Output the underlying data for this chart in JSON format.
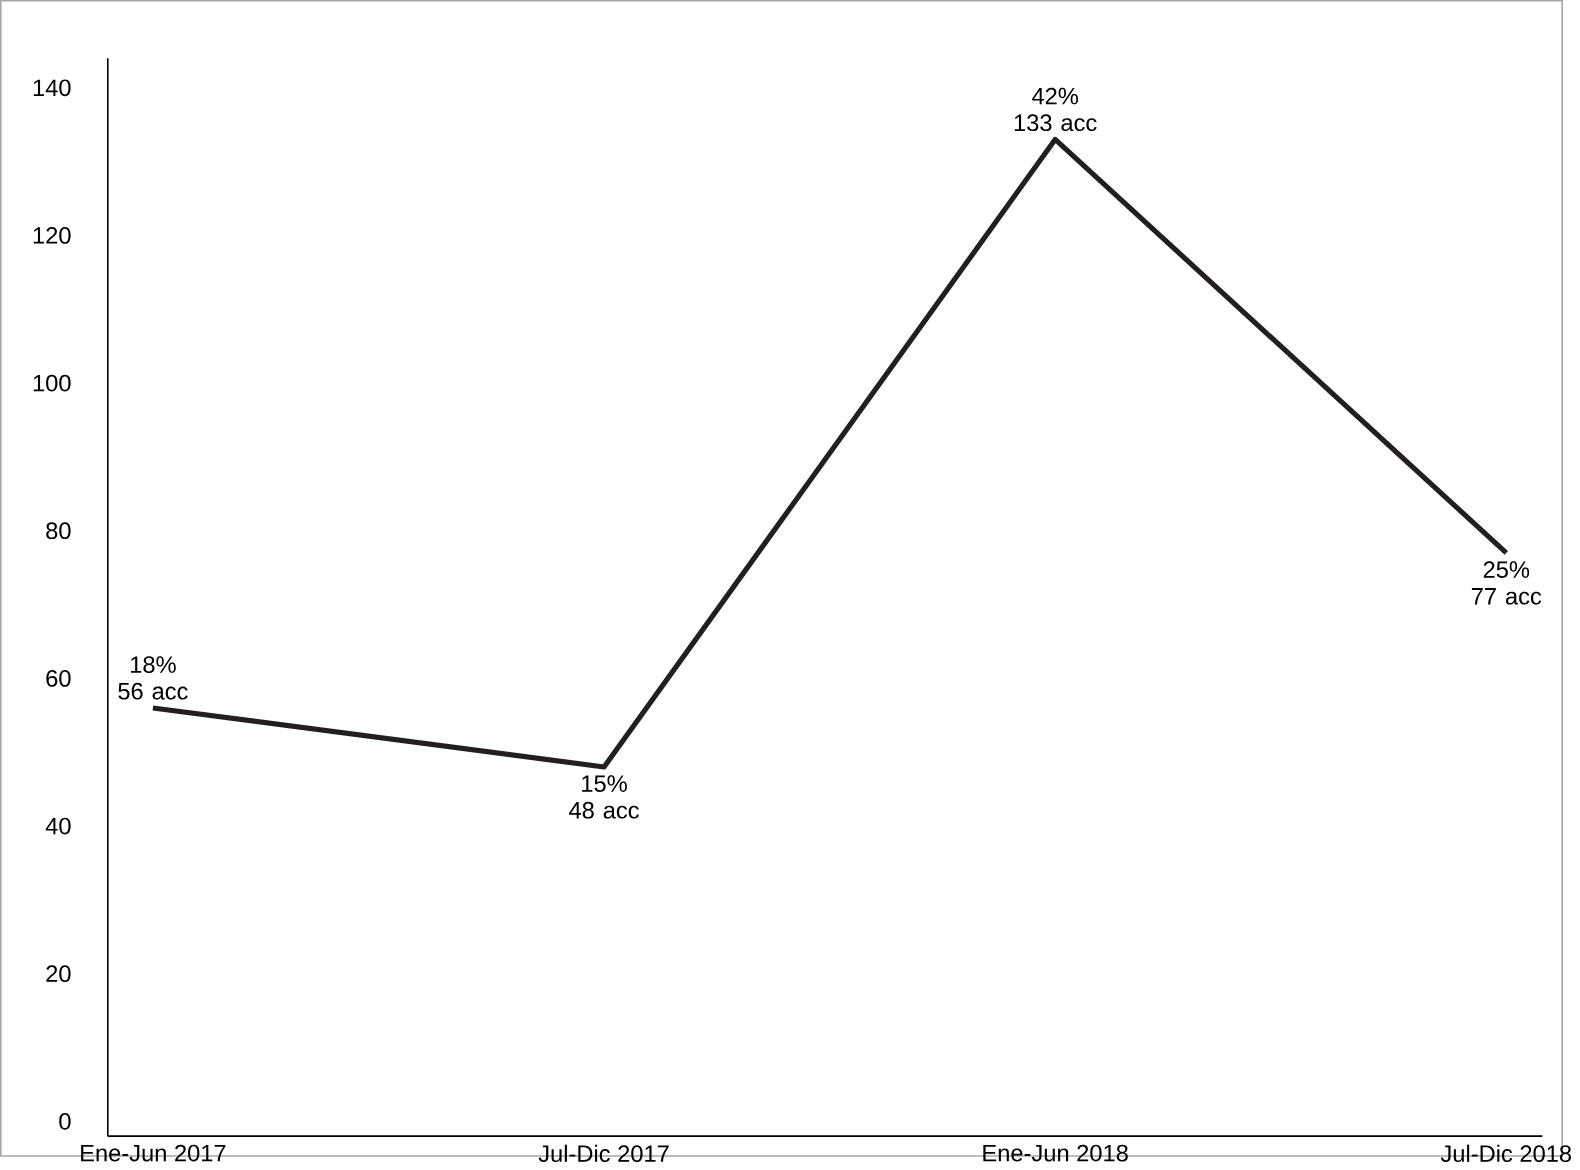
{
  "chart_data": {
    "type": "line",
    "categories": [
      "Ene-Jun 2017",
      "Jul-Dic 2017",
      "Ene-Jun 2018",
      "Jul-Dic 2018"
    ],
    "values": [
      56,
      48,
      133,
      77
    ],
    "value_labels": [
      "18% 56 acc",
      "15% 48 acc",
      "42% 133 acc",
      "25% 77 acc"
    ],
    "color": "#231f20",
    "ylim": [
      -2,
      144
    ],
    "yticks": [
      0,
      20,
      40,
      60,
      80,
      100,
      120,
      140
    ],
    "grid": false,
    "legend": false,
    "marker": "none",
    "line_style": "solid"
  }
}
